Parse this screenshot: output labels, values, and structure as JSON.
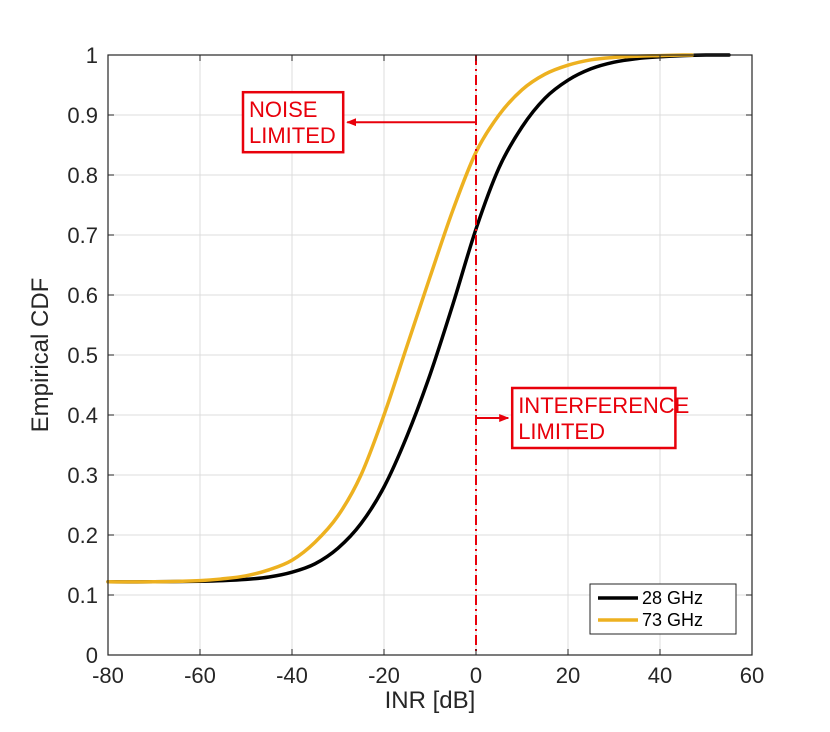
{
  "chart_data": {
    "type": "line",
    "title": "",
    "xlabel": "INR [dB]",
    "ylabel": "Empirical CDF",
    "xlim": [
      -80,
      60
    ],
    "ylim": [
      0,
      1
    ],
    "x_ticks": [
      -80,
      -60,
      -40,
      -20,
      0,
      20,
      40,
      60
    ],
    "x_tick_labels": [
      "-80",
      "-60",
      "-40",
      "-20",
      "0",
      "20",
      "40",
      "60"
    ],
    "y_ticks": [
      0,
      0.1,
      0.2,
      0.3,
      0.4,
      0.5,
      0.6,
      0.7,
      0.8,
      0.9,
      1
    ],
    "y_tick_labels": [
      "0",
      "0.1",
      "0.2",
      "0.3",
      "0.4",
      "0.5",
      "0.6",
      "0.7",
      "0.8",
      "0.9",
      "1"
    ],
    "grid": true,
    "legend_position": "bottom-right",
    "series": [
      {
        "name": "28 GHz",
        "color": "#000000",
        "x": [
          -80,
          -70,
          -60,
          -55,
          -50,
          -45,
          -40,
          -35,
          -30,
          -25,
          -20,
          -15,
          -10,
          -5,
          0,
          5,
          10,
          15,
          20,
          25,
          30,
          35,
          40,
          45,
          50,
          55
        ],
        "y": [
          0.122,
          0.122,
          0.123,
          0.124,
          0.126,
          0.13,
          0.138,
          0.152,
          0.178,
          0.219,
          0.28,
          0.365,
          0.467,
          0.585,
          0.71,
          0.812,
          0.88,
          0.928,
          0.958,
          0.977,
          0.988,
          0.994,
          0.997,
          0.999,
          1.0,
          1.0
        ]
      },
      {
        "name": "73 GHz",
        "color": "#edb120",
        "x": [
          -80,
          -70,
          -60,
          -55,
          -50,
          -45,
          -40,
          -35,
          -30,
          -25,
          -20,
          -15,
          -10,
          -5,
          0,
          5,
          10,
          15,
          20,
          25,
          30,
          35,
          40,
          45,
          47
        ],
        "y": [
          0.122,
          0.122,
          0.124,
          0.127,
          0.132,
          0.142,
          0.158,
          0.188,
          0.232,
          0.3,
          0.4,
          0.515,
          0.63,
          0.742,
          0.838,
          0.9,
          0.942,
          0.968,
          0.983,
          0.992,
          0.996,
          0.998,
          0.999,
          1.0,
          1.0
        ]
      }
    ],
    "threshold_line": {
      "x": 0,
      "color": "#e8000b",
      "style": "dash-dot"
    },
    "annotations": [
      {
        "id": "noise",
        "lines": [
          "NOISE",
          "LIMITED"
        ],
        "y": 0.888,
        "arrow_from_x": 0,
        "arrow_to_x": -28
      },
      {
        "id": "interference",
        "lines": [
          "INTERFERENCE",
          "LIMITED"
        ],
        "y": 0.395,
        "arrow_from_x": 0,
        "arrow_to_x": 7
      }
    ]
  }
}
